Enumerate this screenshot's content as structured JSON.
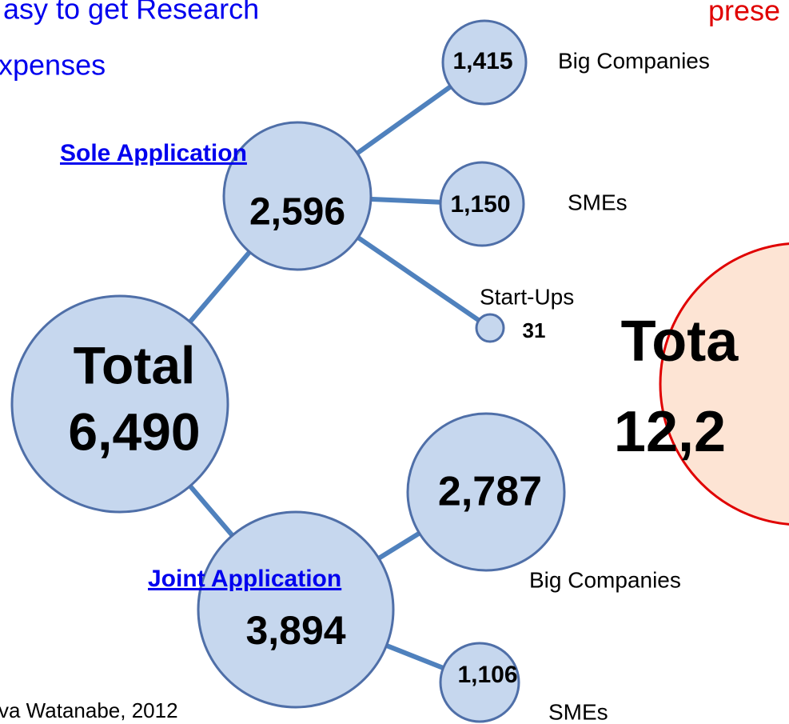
{
  "header": {
    "lines": [
      "asy to get Research",
      "xpenses"
    ],
    "right": "prese"
  },
  "nodes": [
    {
      "label": "Total",
      "value": "6,490"
    },
    {
      "label": "Sole Application",
      "value": "2,596"
    },
    {
      "label": "Big Companies",
      "value": "1,415"
    },
    {
      "label": "SMEs",
      "value": "1,150"
    },
    {
      "label": "Start-Ups",
      "value": "31"
    },
    {
      "label": "Joint  Application",
      "value": "3,894"
    },
    {
      "label": "Big Companies",
      "value": "2,787"
    },
    {
      "label": "SMEs",
      "value": "1,106"
    },
    {
      "label": "Tota",
      "value": "12,2"
    }
  ],
  "footer": "va Watanabe, 2012"
}
